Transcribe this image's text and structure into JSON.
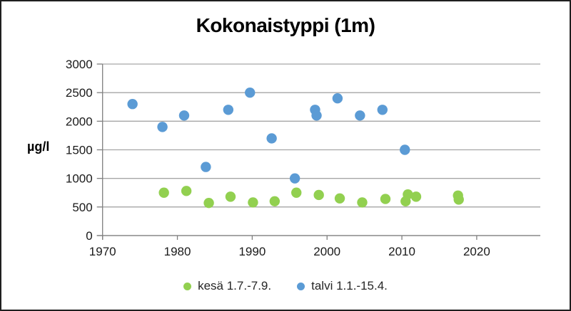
{
  "chart_data": {
    "type": "scatter",
    "title": "Kokonaistyppi (1m)",
    "ylabel": "µg/l",
    "xlabel": "",
    "xlim": [
      1970,
      2028.5
    ],
    "ylim": [
      0,
      3000
    ],
    "x_ticks": [
      1970,
      1980,
      1990,
      2000,
      2010,
      2020
    ],
    "y_ticks": [
      0,
      500,
      1000,
      1500,
      2000,
      2500,
      3000
    ],
    "grid": "horizontal",
    "legend_position": "bottom",
    "series": [
      {
        "name": "kesä 1.7.-7.9.",
        "color": "#92D050",
        "marker": "circle",
        "points": [
          [
            1978.2,
            750
          ],
          [
            1981.2,
            780
          ],
          [
            1984.2,
            570
          ],
          [
            1987.1,
            680
          ],
          [
            1990.1,
            580
          ],
          [
            1993.0,
            600
          ],
          [
            1995.9,
            750
          ],
          [
            1998.9,
            710
          ],
          [
            2001.7,
            650
          ],
          [
            2004.7,
            580
          ],
          [
            2007.8,
            640
          ],
          [
            2010.5,
            600
          ],
          [
            2010.8,
            720
          ],
          [
            2011.9,
            680
          ],
          [
            2017.5,
            700
          ],
          [
            2017.6,
            630
          ]
        ]
      },
      {
        "name": "talvi 1.1.-15.4.",
        "color": "#5B9BD5",
        "marker": "circle",
        "points": [
          [
            1974.0,
            2300
          ],
          [
            1978.0,
            1900
          ],
          [
            1980.9,
            2100
          ],
          [
            1983.8,
            1200
          ],
          [
            1986.8,
            2200
          ],
          [
            1989.7,
            2500
          ],
          [
            1992.6,
            1700
          ],
          [
            1995.7,
            1000
          ],
          [
            1998.4,
            2200
          ],
          [
            1998.6,
            2100
          ],
          [
            2001.4,
            2400
          ],
          [
            2004.4,
            2100
          ],
          [
            2007.4,
            2200
          ],
          [
            2010.4,
            1500
          ]
        ]
      }
    ],
    "colors": {
      "grid": "#A6A6A6",
      "axis": "#7F7F7F",
      "text": "#1A1A1A",
      "background": "#FFFFFF",
      "border": "#1F1F1F"
    }
  }
}
